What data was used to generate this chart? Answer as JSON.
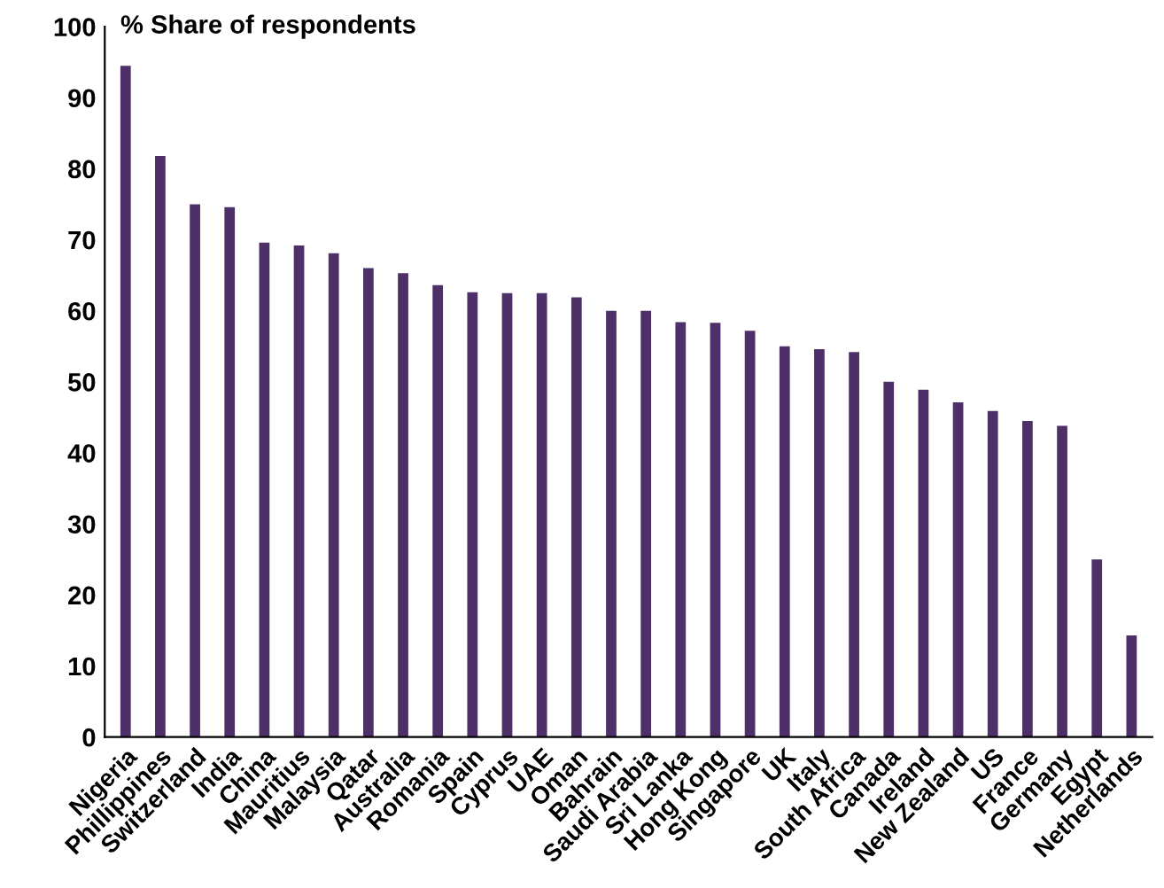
{
  "chart_data": {
    "type": "bar",
    "ylabel": "% Share of respondents",
    "categories": [
      "Nigeria",
      "Phillippines",
      "Switzerland",
      "India",
      "China",
      "Mauritius",
      "Malaysia",
      "Qatar",
      "Australia",
      "Romania",
      "Spain",
      "Cyprus",
      "UAE",
      "Oman",
      "Bahrain",
      "Saudi Arabia",
      "Sri Lanka",
      "Hong Kong",
      "Singapore",
      "UK",
      "Italy",
      "South Africa",
      "Canada",
      "Ireland",
      "New Zealand",
      "US",
      "France",
      "Germany",
      "Egypt",
      "Netherlands"
    ],
    "values": [
      94.5,
      81.8,
      75,
      74.6,
      69.6,
      69.2,
      68.1,
      66,
      65.3,
      63.6,
      62.6,
      62.5,
      62.5,
      61.9,
      60,
      60,
      58.4,
      58.3,
      57.2,
      55,
      54.6,
      54.2,
      50,
      48.9,
      47.1,
      45.9,
      44.5,
      43.8,
      25,
      14.3
    ],
    "color": "#4e3068",
    "ylim": [
      0,
      100
    ],
    "yticks": [
      0,
      10,
      20,
      30,
      40,
      50,
      60,
      70,
      80,
      90,
      100
    ],
    "grid": false
  }
}
